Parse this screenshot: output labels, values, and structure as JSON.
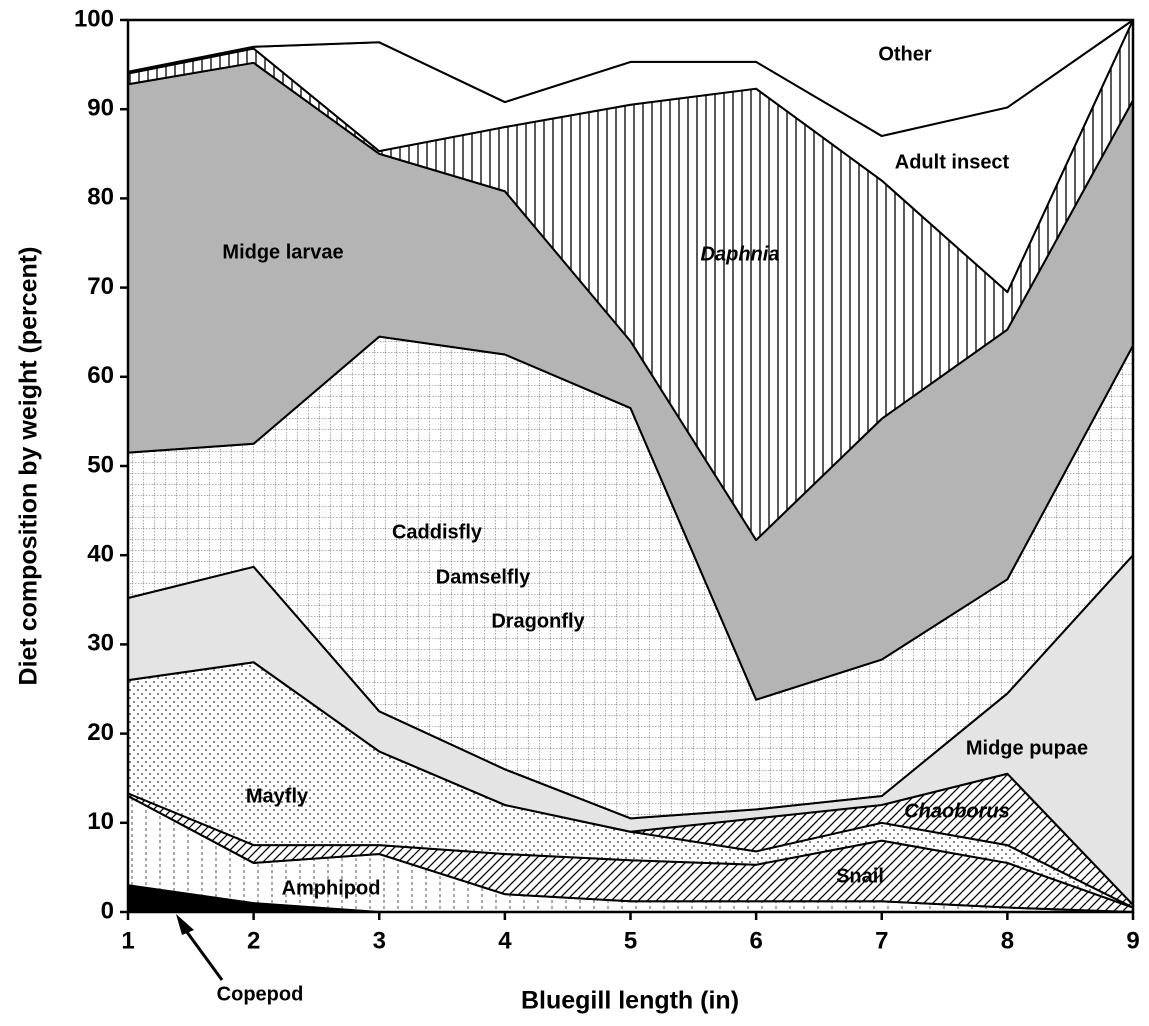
{
  "chart_data": {
    "type": "stacked_area",
    "xlabel": "Bluegill length (in)",
    "ylabel": "Diet composition by weight (percent)",
    "x": [
      1,
      2,
      3,
      4,
      5,
      6,
      7,
      8,
      9
    ],
    "xlim": [
      1,
      9
    ],
    "xticks": [
      1,
      2,
      3,
      4,
      5,
      6,
      7,
      8,
      9
    ],
    "ylim": [
      0,
      100
    ],
    "yticks": [
      0,
      10,
      20,
      30,
      40,
      50,
      60,
      70,
      80,
      90,
      100
    ],
    "series": [
      {
        "name": "Copepod",
        "color": "#000000",
        "pattern": "solid",
        "values": [
          3,
          1,
          0,
          0,
          0,
          0,
          0,
          0,
          0
        ]
      },
      {
        "name": "Amphipod",
        "color": "#ffffff",
        "pattern": "vlines-sparse",
        "values": [
          10,
          4.5,
          6.5,
          2,
          1.2,
          1.2,
          1.2,
          0.5,
          0
        ]
      },
      {
        "name": "Snail",
        "color": "#ffffff",
        "pattern": "diag",
        "values": [
          0.3,
          2,
          1,
          4.5,
          4.6,
          4.1,
          6.8,
          5,
          0.5
        ]
      },
      {
        "name": "Mayfly",
        "color": "#ffffff",
        "pattern": "dots",
        "values": [
          12.7,
          20.5,
          10.5,
          5.5,
          3.2,
          1.5,
          2,
          2,
          0
        ]
      },
      {
        "name": "Chaoborus",
        "color": "#ffffff",
        "pattern": "diag",
        "values": [
          0,
          0,
          0,
          0,
          0,
          3.7,
          2,
          8,
          0.3
        ]
      },
      {
        "name": "Midge pupae",
        "color": "#e4e4e4",
        "pattern": "solid",
        "values": [
          9.2,
          10.7,
          4.5,
          4,
          1.5,
          1,
          1,
          9,
          39.2
        ]
      },
      {
        "name": "Caddisfly",
        "color": "#ffffff",
        "pattern": "grid",
        "values": [
          16.3,
          13.8,
          42,
          46.5,
          46,
          12.3,
          15.3,
          12.8,
          23.5
        ]
      },
      {
        "name": "Midge larvae",
        "color": "#b4b4b4",
        "pattern": "solid",
        "values": [
          41.3,
          42.7,
          20.5,
          18.3,
          7.5,
          17.9,
          27,
          28,
          27.5
        ]
      },
      {
        "name": "Daphnia",
        "color": "#ffffff",
        "pattern": "vlines",
        "values": [
          1.2,
          1.6,
          0.3,
          7.2,
          26.5,
          50.6,
          26.7,
          4.2,
          9
        ]
      },
      {
        "name": "Adult insect",
        "color": "#ffffff",
        "pattern": "solid",
        "values": [
          0.2,
          0.2,
          12.2,
          2.8,
          4.8,
          3,
          5,
          20.7,
          0
        ]
      },
      {
        "name": "Other",
        "color": "#ffffff",
        "pattern": "solid",
        "values": [
          5.8,
          3,
          2.5,
          9.2,
          4.7,
          4.7,
          13,
          9.8,
          0
        ]
      }
    ],
    "annotations": [
      "Damselfly",
      "Dragonfly"
    ]
  }
}
